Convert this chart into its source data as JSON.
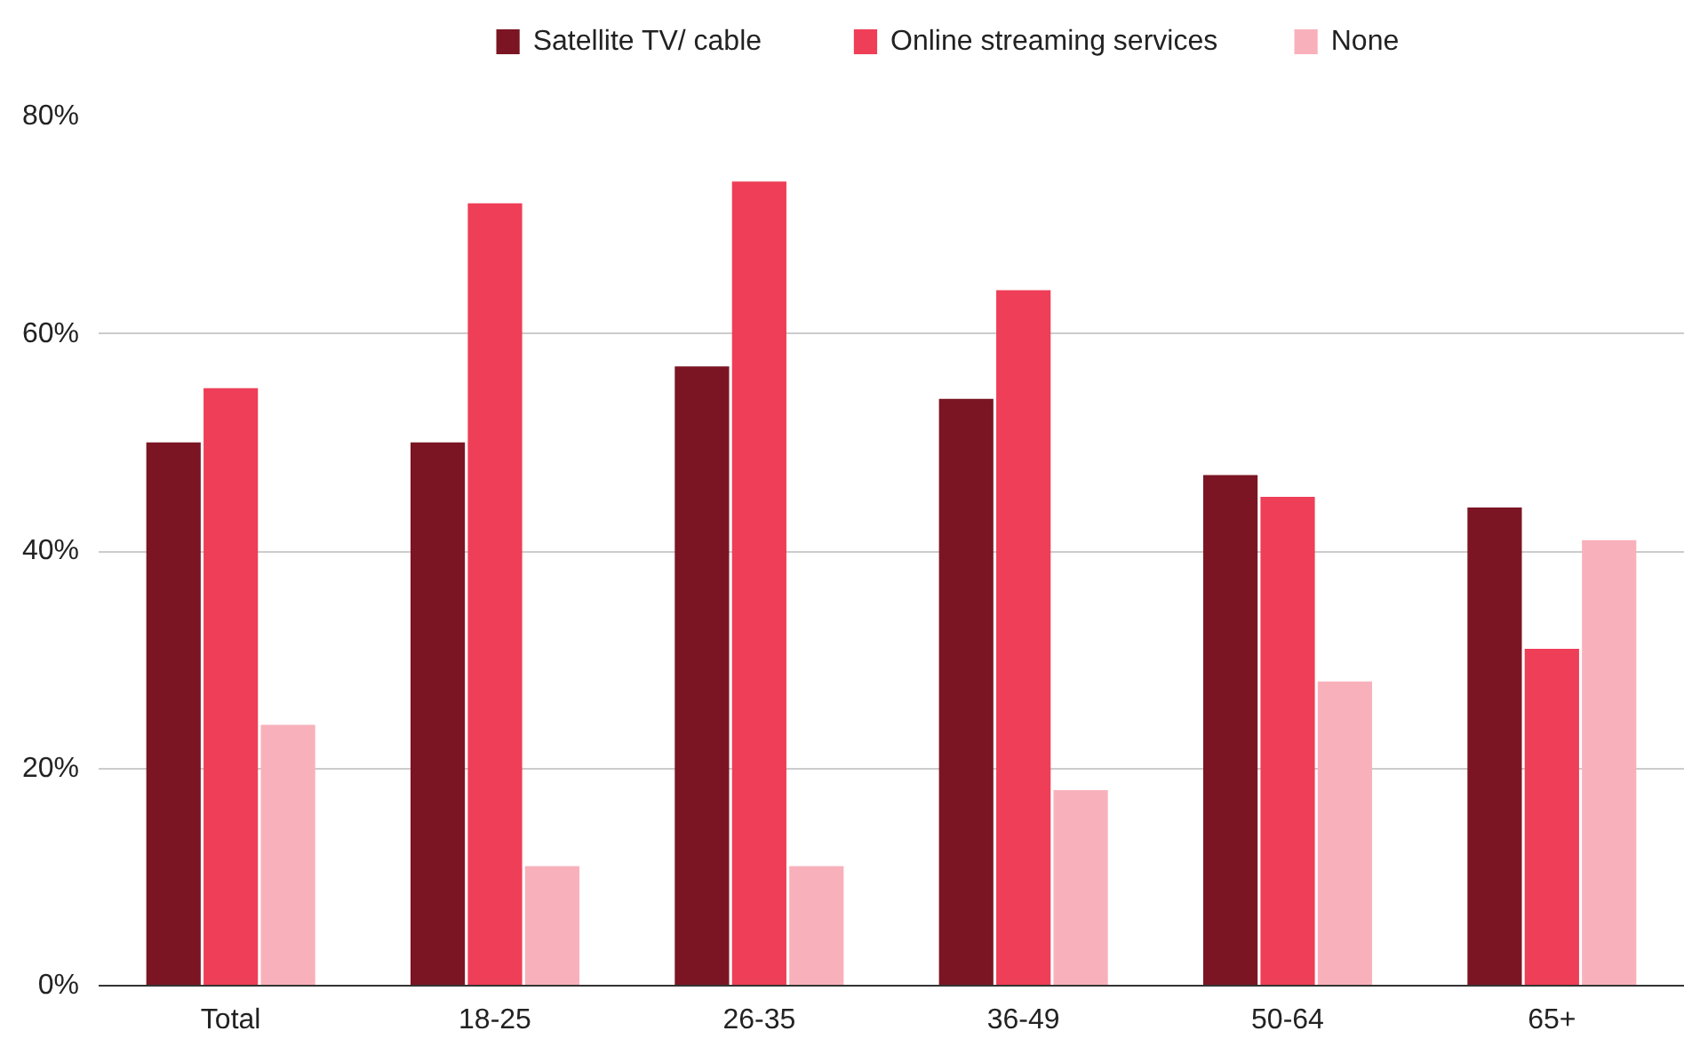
{
  "chart_data": {
    "type": "bar",
    "categories": [
      "Total",
      "18-25",
      "26-35",
      "36-49",
      "50-64",
      "65+"
    ],
    "series": [
      {
        "name": "Satellite TV/ cable",
        "color": "#7b1523",
        "values": [
          50,
          50,
          57,
          54,
          47,
          44
        ]
      },
      {
        "name": "Online streaming services",
        "color": "#ef3e57",
        "values": [
          55,
          72,
          74,
          64,
          45,
          31
        ]
      },
      {
        "name": "None",
        "color": "#f8b1bb",
        "values": [
          24,
          11,
          11,
          18,
          28,
          41
        ]
      }
    ],
    "ylim": [
      0,
      80
    ],
    "yticks": [
      {
        "value": 0,
        "label": "0%"
      },
      {
        "value": 20,
        "label": "20%"
      },
      {
        "value": 40,
        "label": "40%"
      },
      {
        "value": 60,
        "label": "60%"
      },
      {
        "value": 80,
        "label": "80%"
      }
    ],
    "grid": "y",
    "legend": "top"
  }
}
